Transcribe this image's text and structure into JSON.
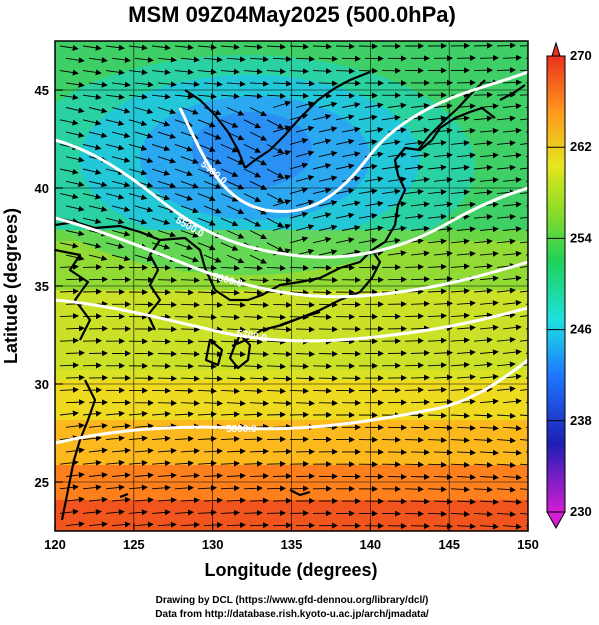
{
  "title": "MSM 09Z04May2025 (500.0hPa)",
  "x_axis": {
    "label": "Longitude (degrees)",
    "range": [
      120,
      150
    ],
    "ticks": [
      "120",
      "125",
      "130",
      "135",
      "140",
      "145",
      "150"
    ]
  },
  "y_axis": {
    "label": "Latitude  (degrees)",
    "range": [
      22.5,
      47.5
    ],
    "ticks": [
      "25",
      "30",
      "35",
      "40",
      "45"
    ]
  },
  "colorbar": {
    "range": [
      230,
      270
    ],
    "ticks": [
      "230",
      "238",
      "246",
      "254",
      "262",
      "270"
    ],
    "colors_low_to_high": [
      "#d21ed2",
      "#1e1eb4",
      "#1e78ff",
      "#1ee1e1",
      "#1ed25a",
      "#8cdc28",
      "#e6e61e",
      "#ff961e",
      "#eb321e"
    ]
  },
  "contours": [
    {
      "label": "5400.0"
    },
    {
      "label": "5500.0"
    },
    {
      "label": "5600.0"
    },
    {
      "label": "5700.0"
    },
    {
      "label": "5800.0"
    }
  ],
  "footer": {
    "line1": "Drawing by DCL (https://www.gfd-dennou.org/library/dcl/)",
    "line2": "Data from http://database.rish.kyoto-u.ac.jp/arch/jmadata/"
  }
}
